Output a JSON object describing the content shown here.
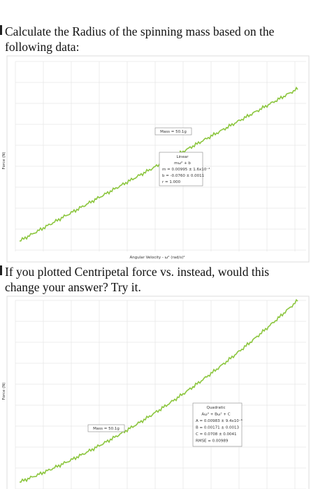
{
  "question_1": {
    "lines": [
      "Calculate the Radius of the spinning mass based on the",
      "following data:"
    ]
  },
  "figure_1": {
    "y_label": "Force (N)",
    "x_label": "Angular Velocity - ω² (rad/s)²",
    "mass_box": "Mass = 50.1g",
    "fit_box": [
      "Linear",
      "mω² + b",
      "m = 0.00995 ± 1.6x10⁻⁴",
      "b = -0.0760 ± 0.0011",
      "r = 1.000"
    ]
  },
  "question_2": {
    "lines": [
      "If you plotted Centripetal force vs. instead, would this",
      "change your answer?  Try it."
    ]
  },
  "figure_2": {
    "y_label": "Force (N)",
    "mass_box": "Mass = 50.1g",
    "fit_box": [
      "Quadratic",
      "Aω⁴ + Bω² + C",
      "A = 0.00983 ± 9.4x10⁻⁶",
      "B = 0.00171 ± 0.0013",
      "C = 0.0708 ± 0.0041",
      "RMSE = 0.00989"
    ]
  }
}
